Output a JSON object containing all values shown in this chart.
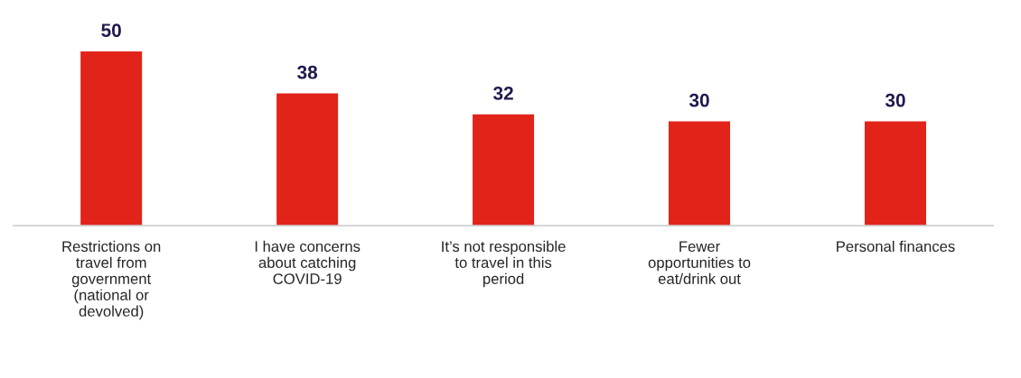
{
  "chart_data": {
    "type": "bar",
    "categories": [
      "Restrictions on\ntravel from\ngovernment\n(national or\ndevolved)",
      "I have concerns\nabout catching\nCOVID-19",
      "It’s not responsible\nto travel in this\nperiod",
      "Fewer\nopportunities to\neat/drink out",
      "Personal finances"
    ],
    "values": [
      50,
      38,
      32,
      30,
      30
    ],
    "color": "#e2231a",
    "data_labels": true,
    "grid": false,
    "legend": false
  }
}
